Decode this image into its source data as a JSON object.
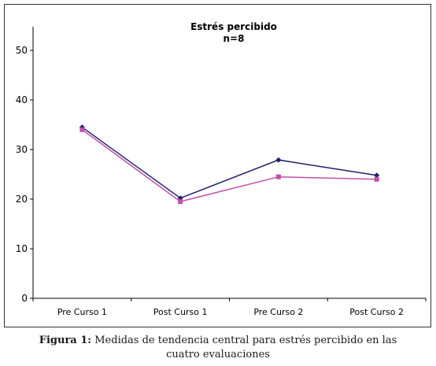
{
  "chart_data": {
    "type": "line",
    "title": "Estrés percibido",
    "subtitle": "n=8",
    "categories": [
      "Pre Curso 1",
      "Post Curso 1",
      "Pre Curso 2",
      "Post Curso 2"
    ],
    "ylim": [
      0,
      50
    ],
    "yticks": [
      0,
      10,
      20,
      30,
      40,
      50
    ],
    "grid": false,
    "legend": "none",
    "series": [
      {
        "color": "#1f1f6e",
        "marker": "diamond",
        "values": [
          34.5,
          20.2,
          27.9,
          24.8
        ]
      },
      {
        "color": "#c04fa8",
        "marker": "square",
        "values": [
          34.0,
          19.5,
          24.5,
          24.0
        ]
      }
    ]
  },
  "caption": {
    "label": "Figura 1:",
    "text_line1": " Medidas de tendencia central para estrés percibido en las",
    "text_line2": "cuatro evaluaciones"
  }
}
